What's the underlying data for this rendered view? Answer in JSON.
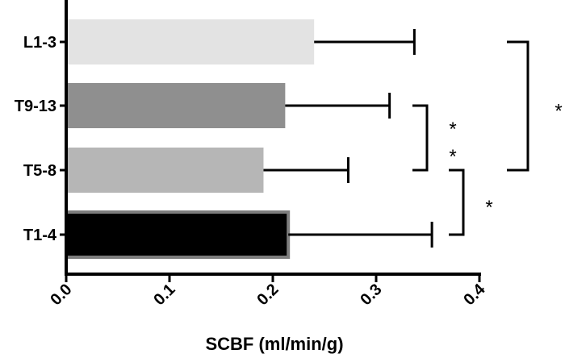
{
  "chart_data": {
    "type": "bar",
    "orientation": "horizontal",
    "xlabel": "SCBF (ml/min/g)",
    "ylabel": "",
    "xlim": [
      0,
      0.4
    ],
    "x_ticks": [
      "0.0",
      "0.1",
      "0.2",
      "0.3",
      "0.4"
    ],
    "grid": false,
    "categories": [
      "L1-3",
      "T9-13",
      "T5-8",
      "T1-4"
    ],
    "values": [
      0.24,
      0.212,
      0.191,
      0.215
    ],
    "error_plus": [
      0.097,
      0.101,
      0.082,
      0.139
    ],
    "bar_colors": [
      "#e3e3e3",
      "#8f8f8f",
      "#b6b6b6",
      "#000000"
    ],
    "bar_edge_colors": [
      null,
      null,
      null,
      "#7d7d7d"
    ],
    "significance": [
      {
        "from": "T9-13",
        "to": "T5-8",
        "label": "* *"
      },
      {
        "from": "T5-8",
        "to": "T1-4",
        "label": "*"
      },
      {
        "from": "L1-3",
        "to": "T5-8",
        "label": "*"
      }
    ]
  }
}
